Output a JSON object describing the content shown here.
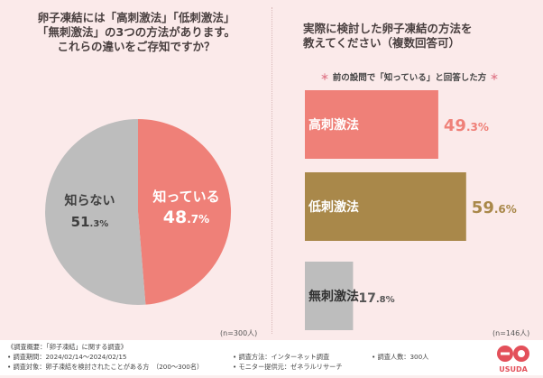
{
  "left_question": {
    "line1": "卵子凍結には「高刺激法」「低刺激法」",
    "line2": "「無刺激法」の3つの方法があります。",
    "line3": "これらの違いをご存知ですか？"
  },
  "right_question": {
    "line1": "実際に検討した卵子凍結の方法を",
    "line2": "教えてください（複数回答可）"
  },
  "subtitle": {
    "star_left": "＊",
    "text": "前の設問で「知っている」と回答した方",
    "star_right": "＊"
  },
  "left_n": "(n=300人)",
  "right_n": "(n=146人)",
  "colors": {
    "coral": "#ef8078",
    "gold": "#a9884a",
    "gray": "#bdbdbd",
    "bg": "#fbeaea"
  },
  "chart_data": [
    {
      "type": "pie",
      "title": "",
      "slices": [
        {
          "label": "知っている",
          "value": 48.7,
          "display_value": "48.7",
          "unit": "%",
          "color": "#ef8078"
        },
        {
          "label": "知らない",
          "value": 51.3,
          "display_value": "51.3",
          "unit": "%",
          "color": "#bdbdbd"
        }
      ]
    },
    {
      "type": "bar",
      "orientation": "horizontal",
      "title": "",
      "categories": [
        "高刺激法",
        "低刺激法",
        "無刺激法"
      ],
      "values": [
        49.3,
        59.6,
        17.8
      ],
      "display_values": [
        "49.3",
        "59.6",
        "17.8"
      ],
      "unit": "%",
      "colors": [
        "#ef8078",
        "#a9884a",
        "#bdbdbd"
      ],
      "xlim": [
        0,
        100
      ]
    }
  ],
  "footer": {
    "line1": "《調査概要：「卵子凍結」に関する調査》",
    "line2": "• 調査期間：2024/02/14〜2024/02/15",
    "line3": "• 調査対象：卵子凍結を検討されたことがある方　（200〜300名）",
    "method": "• 調査方法：インターネット調査",
    "count": "• 調査人数：300人",
    "provider": "• モニター提供元：ゼネラルリサーチ",
    "logo_text": "USUDA"
  }
}
